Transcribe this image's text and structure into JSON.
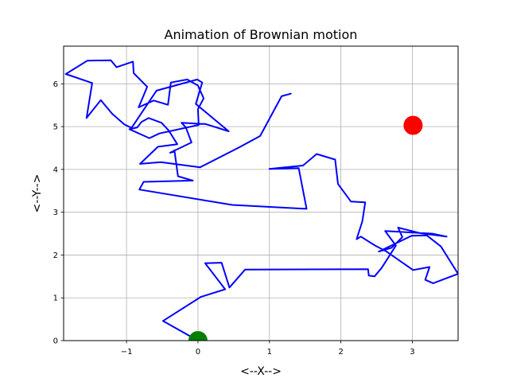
{
  "chart_data": {
    "type": "line",
    "title": "Animation of Brownian motion",
    "xlabel": "<--X-->",
    "ylabel": "<--Y-->",
    "xlim": [
      -1.88,
      3.64
    ],
    "ylim": [
      0,
      6.88
    ],
    "xticks": [
      -1,
      0,
      1,
      2,
      3
    ],
    "xtick_labels": [
      "−1",
      "0",
      "1",
      "2",
      "3"
    ],
    "yticks": [
      0,
      1,
      2,
      3,
      4,
      5,
      6
    ],
    "ytick_labels": [
      "0",
      "1",
      "2",
      "3",
      "4",
      "5",
      "6"
    ],
    "grid": true,
    "series": [
      {
        "color": "#0000ff",
        "x": [
          0.0,
          -0.49,
          0.04,
          0.38,
          0.1,
          0.33,
          0.44,
          0.66,
          2.38,
          2.39,
          2.47,
          2.57,
          2.77,
          2.62,
          3.28,
          3.48,
          3.11,
          2.8,
          2.86,
          2.71,
          2.53,
          2.99,
          3.2,
          3.4,
          3.64,
          3.29,
          3.18,
          3.24,
          3.01,
          2.63,
          2.47,
          2.28,
          2.22,
          2.3,
          2.34,
          2.14,
          1.96,
          1.92,
          1.66,
          1.47,
          1.0,
          1.41,
          1.52,
          0.48,
          -0.82,
          -0.76,
          -0.07,
          -0.28,
          -0.33,
          -0.34,
          -0.39,
          -0.09,
          -0.17,
          -0.23,
          0.11,
          0.43,
          -0.03,
          0.06,
          -0.01,
          -0.58,
          -0.93,
          -1.03,
          -1.2,
          -1.36,
          -1.56,
          -1.48,
          -1.85,
          -1.55,
          -1.22,
          -1.14,
          -0.91,
          -0.9,
          -0.71,
          -0.83,
          -0.62,
          -0.42,
          -0.38,
          -0.15,
          0.0,
          0.08,
          0.0,
          0.01,
          -0.54,
          -0.68,
          -0.96,
          -0.85,
          -0.79,
          -0.69,
          -0.51,
          -0.41,
          -0.29,
          -0.56,
          -0.81,
          -0.52,
          0.03,
          0.57,
          0.87,
          1.17,
          1.3
        ],
        "y": [
          0.0,
          0.46,
          1.02,
          1.2,
          1.81,
          1.82,
          1.24,
          1.66,
          1.67,
          1.52,
          1.5,
          1.7,
          2.22,
          2.56,
          2.5,
          2.43,
          2.51,
          2.64,
          2.42,
          2.17,
          2.08,
          2.45,
          2.46,
          2.2,
          1.56,
          1.34,
          1.42,
          1.72,
          1.65,
          2.09,
          2.23,
          2.43,
          2.37,
          2.79,
          3.23,
          3.25,
          3.66,
          4.23,
          4.36,
          4.09,
          4.01,
          4.03,
          3.08,
          3.17,
          3.53,
          3.71,
          3.74,
          3.84,
          4.45,
          4.41,
          4.39,
          4.63,
          4.98,
          5.09,
          5.06,
          4.89,
          5.53,
          6.03,
          6.1,
          5.84,
          4.97,
          5.05,
          5.3,
          5.62,
          5.2,
          6.02,
          6.23,
          6.54,
          6.55,
          6.39,
          6.52,
          6.25,
          5.93,
          5.45,
          5.61,
          5.51,
          6.03,
          6.1,
          5.96,
          5.66,
          5.41,
          5.04,
          4.84,
          4.73,
          4.94,
          4.98,
          5.11,
          5.2,
          5.09,
          4.91,
          4.59,
          4.53,
          4.13,
          4.17,
          4.05,
          4.51,
          4.78,
          5.71,
          5.77
        ]
      }
    ],
    "markers": {
      "start": {
        "x": 0.0,
        "y": 0.0,
        "color": "#008000"
      },
      "end": {
        "x": 3.01,
        "y": 5.03,
        "color": "#ff0000"
      }
    }
  }
}
